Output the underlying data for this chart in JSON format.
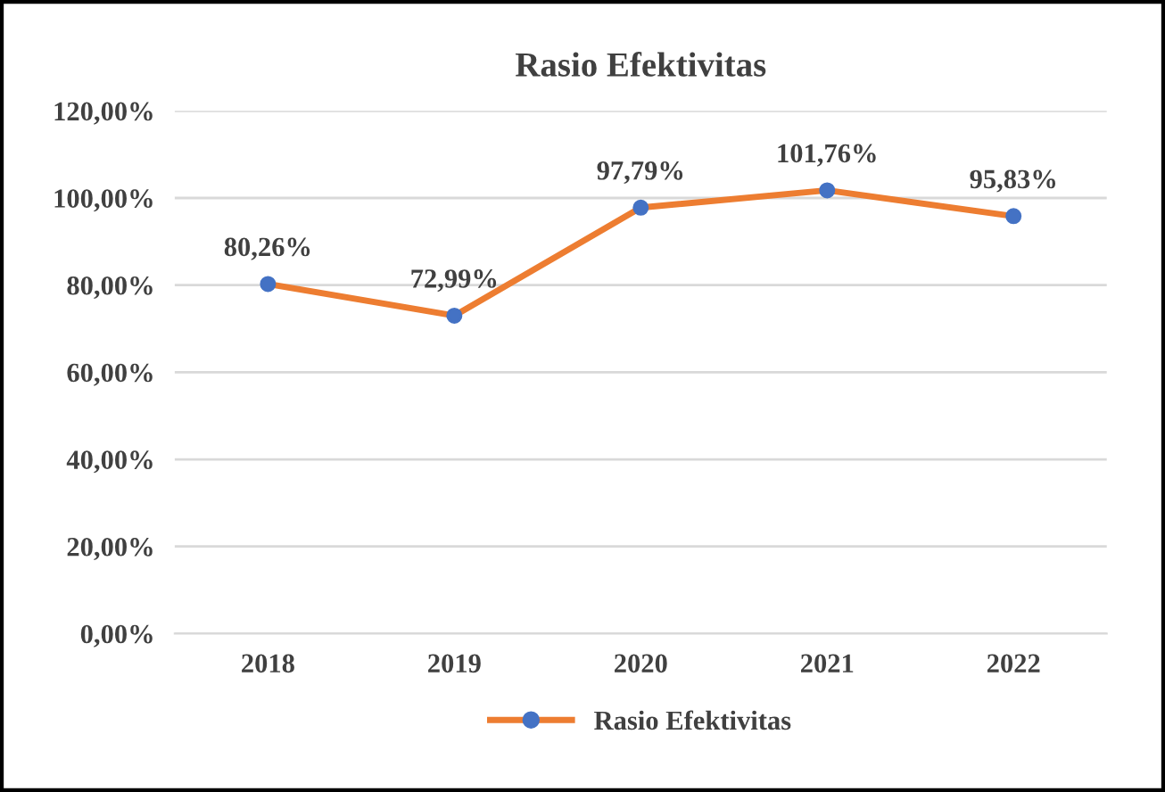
{
  "chart_data": {
    "type": "line",
    "title": "Rasio Efektivitas",
    "categories": [
      "2018",
      "2019",
      "2020",
      "2021",
      "2022"
    ],
    "series": [
      {
        "name": "Rasio Efektivitas",
        "color": "#ed7d31",
        "colors": [
          "#4472c4",
          "#4472c4",
          "#4472c4",
          "#4472c4",
          "#4472c4"
        ],
        "values": [
          80.26,
          72.99,
          97.79,
          101.76,
          95.83
        ],
        "value_labels": [
          "80,26%",
          "72,99%",
          "97,79%",
          "101,76%",
          "95,83%"
        ]
      }
    ],
    "ylim": [
      0,
      120
    ],
    "yticks": [
      {
        "value": 0,
        "label": "0,00%"
      },
      {
        "value": 20,
        "label": "20,00%"
      },
      {
        "value": 40,
        "label": "40,00%"
      },
      {
        "value": 60,
        "label": "60,00%"
      },
      {
        "value": 80,
        "label": "80,00%"
      },
      {
        "value": 100,
        "label": "100,00%"
      },
      {
        "value": 120,
        "label": "120,00%"
      }
    ],
    "grid": "y",
    "legend": "bottom",
    "marker": "circle",
    "line_style": "solid"
  }
}
